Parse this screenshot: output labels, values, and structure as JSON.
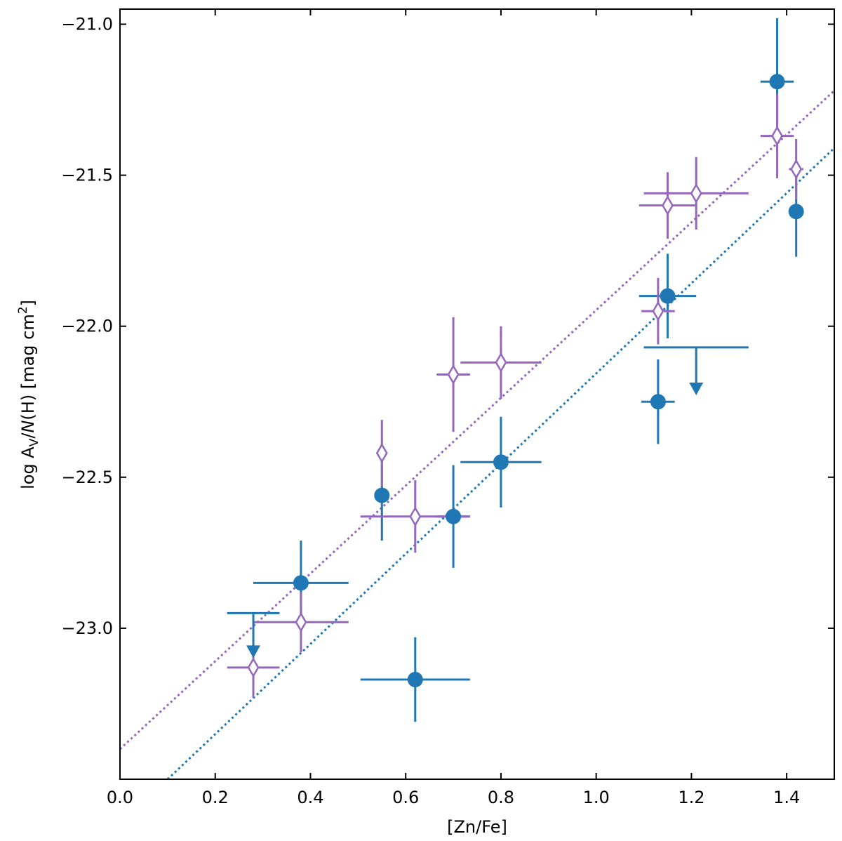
{
  "chart_data": {
    "type": "scatter",
    "title": "",
    "xlabel": "[Zn/Fe]",
    "ylabel": {
      "prefix": "log A",
      "sub": "V",
      "mid": "/",
      "italic": "N",
      "rest": "(H) [mag cm",
      "sup": "2",
      "end": "]"
    },
    "xlim": [
      0.0,
      1.5
    ],
    "ylim": [
      -23.5,
      -20.95
    ],
    "xticks": [
      0.0,
      0.2,
      0.4,
      0.6,
      0.8,
      1.0,
      1.2,
      1.4
    ],
    "xtick_labels": [
      "0.0",
      "0.2",
      "0.4",
      "0.6",
      "0.8",
      "1.0",
      "1.2",
      "1.4"
    ],
    "yticks": [
      -21.0,
      -21.5,
      -22.0,
      -22.5,
      -23.0
    ],
    "ytick_labels": [
      "−21.0",
      "−21.5",
      "−22.0",
      "−22.5",
      "−23.0"
    ],
    "colors": {
      "series_a": "#1f77b4",
      "series_b": "#9467bd"
    },
    "series": [
      {
        "name": "filled",
        "marker": "circle-filled",
        "color": "#1f77b4",
        "points": [
          {
            "x": 0.38,
            "y": -22.85,
            "xerr": 0.1,
            "yerr": 0.14
          },
          {
            "x": 0.55,
            "y": -22.56,
            "xerr": 0.0,
            "yerr": 0.15
          },
          {
            "x": 0.62,
            "y": -23.17,
            "xerr": 0.115,
            "yerr": 0.14
          },
          {
            "x": 0.7,
            "y": -22.63,
            "xerr": 0.035,
            "yerr": 0.17
          },
          {
            "x": 0.8,
            "y": -22.45,
            "xerr": 0.085,
            "yerr": 0.15
          },
          {
            "x": 1.13,
            "y": -22.25,
            "xerr": 0.035,
            "yerr": 0.14
          },
          {
            "x": 1.15,
            "y": -21.9,
            "xerr": 0.06,
            "yerr": 0.14
          },
          {
            "x": 1.38,
            "y": -21.19,
            "xerr": 0.035,
            "yerr": 0.21
          },
          {
            "x": 1.42,
            "y": -21.62,
            "xerr": 0.015,
            "yerr": 0.15
          }
        ]
      },
      {
        "name": "open",
        "marker": "diamond-open",
        "color": "#9467bd",
        "points": [
          {
            "x": 0.28,
            "y": -23.13,
            "xerr": 0.055,
            "yerr": 0.1
          },
          {
            "x": 0.38,
            "y": -22.98,
            "xerr": 0.1,
            "yerr": 0.1
          },
          {
            "x": 0.55,
            "y": -22.42,
            "xerr": 0.0,
            "yerr": 0.11
          },
          {
            "x": 0.62,
            "y": -22.63,
            "xerr": 0.115,
            "yerr": 0.12
          },
          {
            "x": 0.7,
            "y": -22.16,
            "xerr": 0.035,
            "yerr": 0.19
          },
          {
            "x": 0.8,
            "y": -22.12,
            "xerr": 0.085,
            "yerr": 0.12
          },
          {
            "x": 1.13,
            "y": -21.95,
            "xerr": 0.035,
            "yerr": 0.11
          },
          {
            "x": 1.15,
            "y": -21.6,
            "xerr": 0.06,
            "yerr": 0.11
          },
          {
            "x": 1.21,
            "y": -21.56,
            "xerr": 0.11,
            "yerr": 0.12
          },
          {
            "x": 1.38,
            "y": -21.37,
            "xerr": 0.035,
            "yerr": 0.14
          },
          {
            "x": 1.42,
            "y": -21.48,
            "xerr": 0.015,
            "yerr": 0.1
          }
        ]
      }
    ],
    "upper_limits": [
      {
        "x": 0.28,
        "y": -22.95,
        "xerr": 0.055,
        "y_end": -23.08,
        "color": "#1f77b4"
      },
      {
        "x": 1.21,
        "y": -22.07,
        "xerr": 0.11,
        "y_end": -22.21,
        "color": "#1f77b4"
      }
    ],
    "fit_lines": [
      {
        "name": "fit-filled",
        "color": "#1f77b4",
        "style": "dotted",
        "x": [
          0.1,
          1.5
        ],
        "y": [
          -23.5,
          -21.41
        ]
      },
      {
        "name": "fit-open",
        "color": "#9467bd",
        "style": "dotted",
        "x": [
          0.0,
          1.5
        ],
        "y": [
          -23.4,
          -21.22
        ]
      }
    ]
  }
}
